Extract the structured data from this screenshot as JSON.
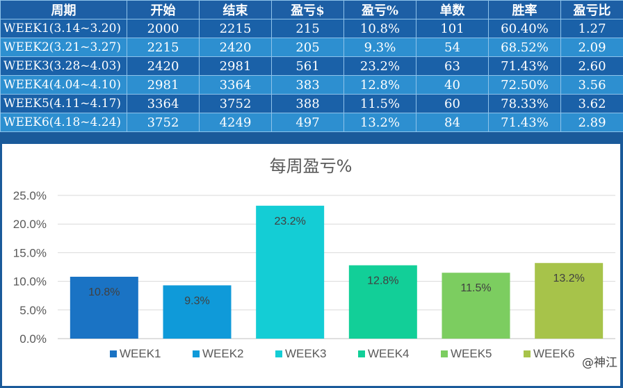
{
  "table": {
    "headers": [
      "周期",
      "开始",
      "结束",
      "盈亏$",
      "盈亏%",
      "单数",
      "胜率",
      "盈亏比"
    ],
    "rows": [
      [
        "WEEK1(3.14~3.20)",
        "2000",
        "2215",
        "215",
        "10.8%",
        "101",
        "60.40%",
        "1.27"
      ],
      [
        "WEEK2(3.21~3.27)",
        "2215",
        "2420",
        "205",
        "9.3%",
        "54",
        "68.52%",
        "2.09"
      ],
      [
        "WEEK3(3.28~4.03)",
        "2420",
        "2981",
        "561",
        "23.2%",
        "63",
        "71.43%",
        "2.60"
      ],
      [
        "WEEK4(4.04~4.10)",
        "2981",
        "3364",
        "383",
        "12.8%",
        "40",
        "72.50%",
        "3.56"
      ],
      [
        "WEEK5(4.11~4.17)",
        "3364",
        "3752",
        "388",
        "11.5%",
        "60",
        "78.33%",
        "3.62"
      ],
      [
        "WEEK6(4.18~4.24)",
        "3752",
        "4249",
        "497",
        "13.2%",
        "84",
        "71.43%",
        "2.89"
      ]
    ]
  },
  "chart_data": {
    "type": "bar",
    "title": "每周盈亏%",
    "categories": [
      "WEEK1",
      "WEEK2",
      "WEEK3",
      "WEEK4",
      "WEEK5",
      "WEEK6"
    ],
    "values": [
      10.8,
      9.3,
      23.2,
      12.8,
      11.5,
      13.2
    ],
    "data_labels": [
      "10.8%",
      "9.3%",
      "23.2%",
      "12.8%",
      "11.5%",
      "13.2%"
    ],
    "yticks": [
      "0.0%",
      "5.0%",
      "10.0%",
      "15.0%",
      "20.0%",
      "25.0%"
    ],
    "ylim": [
      0,
      25
    ],
    "grid": true,
    "legend_position": "bottom",
    "colors": [
      "#1a73c4",
      "#0f9ad9",
      "#14cdd5",
      "#12cf98",
      "#7ccd60",
      "#a7c34a"
    ]
  },
  "watermark": "@神江"
}
